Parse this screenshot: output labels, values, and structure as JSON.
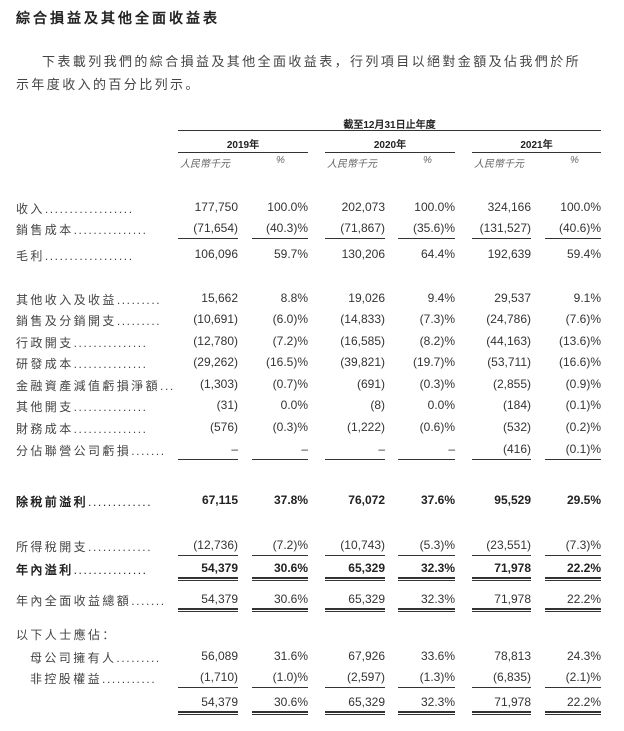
{
  "title": "綜合損益及其他全面收益表",
  "intro": {
    "line1": "下表載列我們的綜合損益及其他全面收益表，行列項目以絕對金額及佔我們於所",
    "line2": "示年度收入的百分比列示。"
  },
  "table": {
    "period_header": "截至12月31日止年度",
    "years": [
      "2019年",
      "2020年",
      "2021年"
    ],
    "unit_amount": "人民幣千元",
    "unit_percent": "%",
    "rows": [
      {
        "label": "收入",
        "dots": "..................",
        "values": [
          "177,750",
          "100.0%",
          "202,073",
          "100.0%",
          "324,166",
          "100.0%"
        ]
      },
      {
        "label": "銷售成本",
        "dots": "...............",
        "values": [
          "(71,654)",
          "(40.3)%",
          "(71,867)",
          "(35.6)%",
          "(131,527)",
          "(40.6)%"
        ],
        "rule": "single"
      },
      {
        "label": "毛利",
        "dots": "..................",
        "values": [
          "106,096",
          "59.7%",
          "130,206",
          "64.4%",
          "192,639",
          "59.4%"
        ]
      },
      {
        "label": "其他收入及收益",
        "dots": ".........",
        "values": [
          "15,662",
          "8.8%",
          "19,026",
          "9.4%",
          "29,537",
          "9.1%"
        ]
      },
      {
        "label": "銷售及分銷開支",
        "dots": ".........",
        "values": [
          "(10,691)",
          "(6.0)%",
          "(14,833)",
          "(7.3)%",
          "(24,786)",
          "(7.6)%"
        ]
      },
      {
        "label": "行政開支",
        "dots": "...............",
        "values": [
          "(12,780)",
          "(7.2)%",
          "(16,585)",
          "(8.2)%",
          "(44,163)",
          "(13.6)%"
        ]
      },
      {
        "label": "研發成本",
        "dots": "...............",
        "values": [
          "(29,262)",
          "(16.5)%",
          "(39,821)",
          "(19.7)%",
          "(53,711)",
          "(16.6)%"
        ]
      },
      {
        "label": "金融資產減值虧損淨額",
        "dots": "...",
        "values": [
          "(1,303)",
          "(0.7)%",
          "(691)",
          "(0.3)%",
          "(2,855)",
          "(0.9)%"
        ]
      },
      {
        "label": "其他開支",
        "dots": "...............",
        "values": [
          "(31)",
          "0.0%",
          "(8)",
          "0.0%",
          "(184)",
          "(0.1)%"
        ]
      },
      {
        "label": "財務成本",
        "dots": "...............",
        "values": [
          "(576)",
          "(0.3)%",
          "(1,222)",
          "(0.6)%",
          "(532)",
          "(0.2)%"
        ]
      },
      {
        "label": "分佔聯營公司虧損",
        "dots": ".......",
        "values": [
          "–",
          "–",
          "–",
          "–",
          "(416)",
          "(0.1)%"
        ],
        "rule": "single"
      },
      {
        "label": "除稅前溢利",
        "dots": ".............",
        "values": [
          "67,115",
          "37.8%",
          "76,072",
          "37.6%",
          "95,529",
          "29.5%"
        ],
        "bold": true
      },
      {
        "label": "所得稅開支",
        "dots": ".............",
        "values": [
          "(12,736)",
          "(7.2)%",
          "(10,743)",
          "(5.3)%",
          "(23,551)",
          "(7.3)%"
        ],
        "rule": "single"
      },
      {
        "label": "年內溢利",
        "dots": "...............",
        "values": [
          "54,379",
          "30.6%",
          "65,329",
          "32.3%",
          "71,978",
          "22.2%"
        ],
        "bold": true,
        "rule": "double"
      },
      {
        "label": "年內全面收益總額",
        "dots": ".......",
        "values": [
          "54,379",
          "30.6%",
          "65,329",
          "32.3%",
          "71,978",
          "22.2%"
        ],
        "rule": "double"
      },
      {
        "label": "以下人士應佔：",
        "dots": "",
        "values": []
      },
      {
        "label": "母公司擁有人",
        "dots": ".........",
        "values": [
          "56,089",
          "31.6%",
          "67,926",
          "33.6%",
          "78,813",
          "24.3%"
        ],
        "indent": true
      },
      {
        "label": "非控股權益",
        "dots": "...........",
        "values": [
          "(1,710)",
          "(1.0)%",
          "(2,597)",
          "(1.3)%",
          "(6,835)",
          "(2.1)%"
        ],
        "indent": true,
        "rule": "single"
      },
      {
        "label": "",
        "dots": "",
        "values": [
          "54,379",
          "30.6%",
          "65,329",
          "32.3%",
          "71,978",
          "22.2%"
        ],
        "rule": "double"
      }
    ]
  }
}
